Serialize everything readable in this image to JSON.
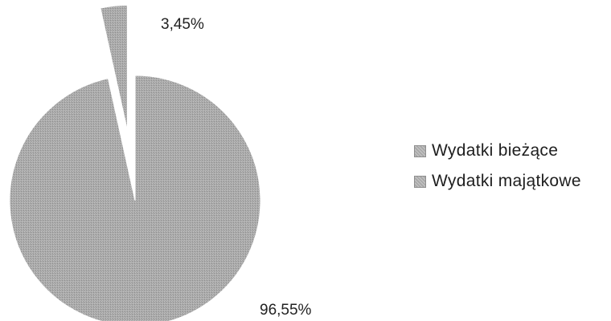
{
  "chart_data": {
    "type": "pie",
    "title": "",
    "categories": [
      "Wydatki bieżące",
      "Wydatki majątkowe"
    ],
    "values": [
      96.55,
      3.45
    ],
    "data_labels": [
      "96,55%",
      "3,45%"
    ],
    "legend_position": "right",
    "exploded_slice": "Wydatki majątkowe"
  },
  "colors": {
    "slice_fill": "#a9a9a9",
    "slice_edge": "#8e8e8e",
    "text": "#222222"
  }
}
